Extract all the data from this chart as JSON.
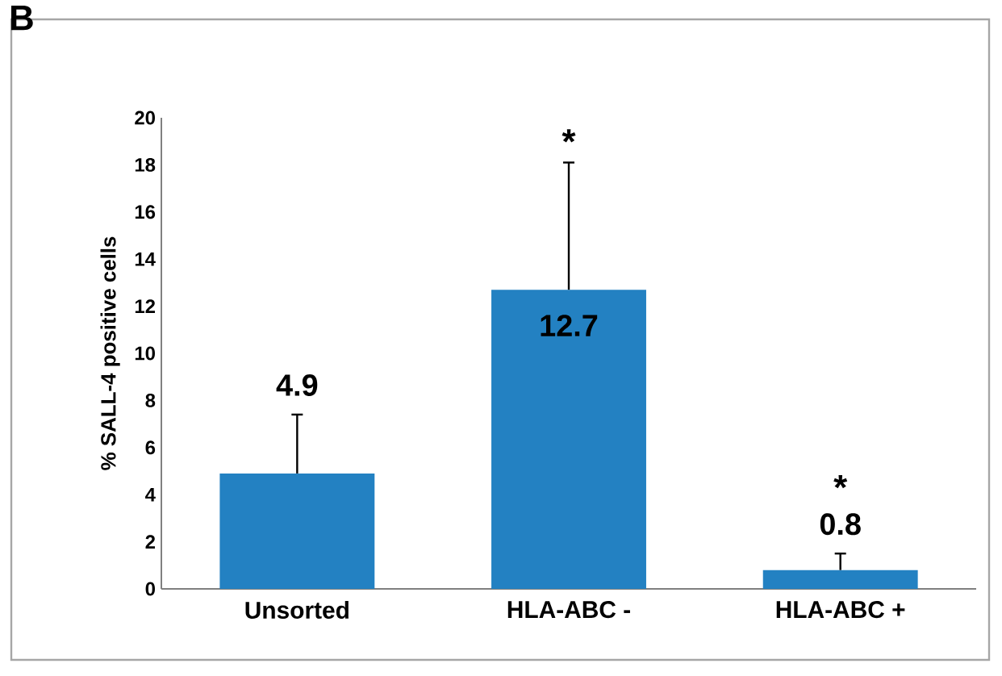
{
  "chart_data": {
    "type": "bar",
    "title": "B",
    "ylabel": "% SALL-4 positive cells",
    "categories": [
      "Unsorted",
      "HLA-ABC -",
      "HLA-ABC +"
    ],
    "values": [
      4.9,
      12.7,
      0.8
    ],
    "errors": [
      2.5,
      5.4,
      0.7
    ],
    "color": "#2381c2",
    "data_labels": true,
    "ylim": [
      0,
      20
    ],
    "yticks": [
      0,
      2,
      4,
      6,
      8,
      10,
      12,
      14,
      16,
      18,
      20
    ],
    "grid": false,
    "annotations": [
      "*",
      "*"
    ]
  }
}
